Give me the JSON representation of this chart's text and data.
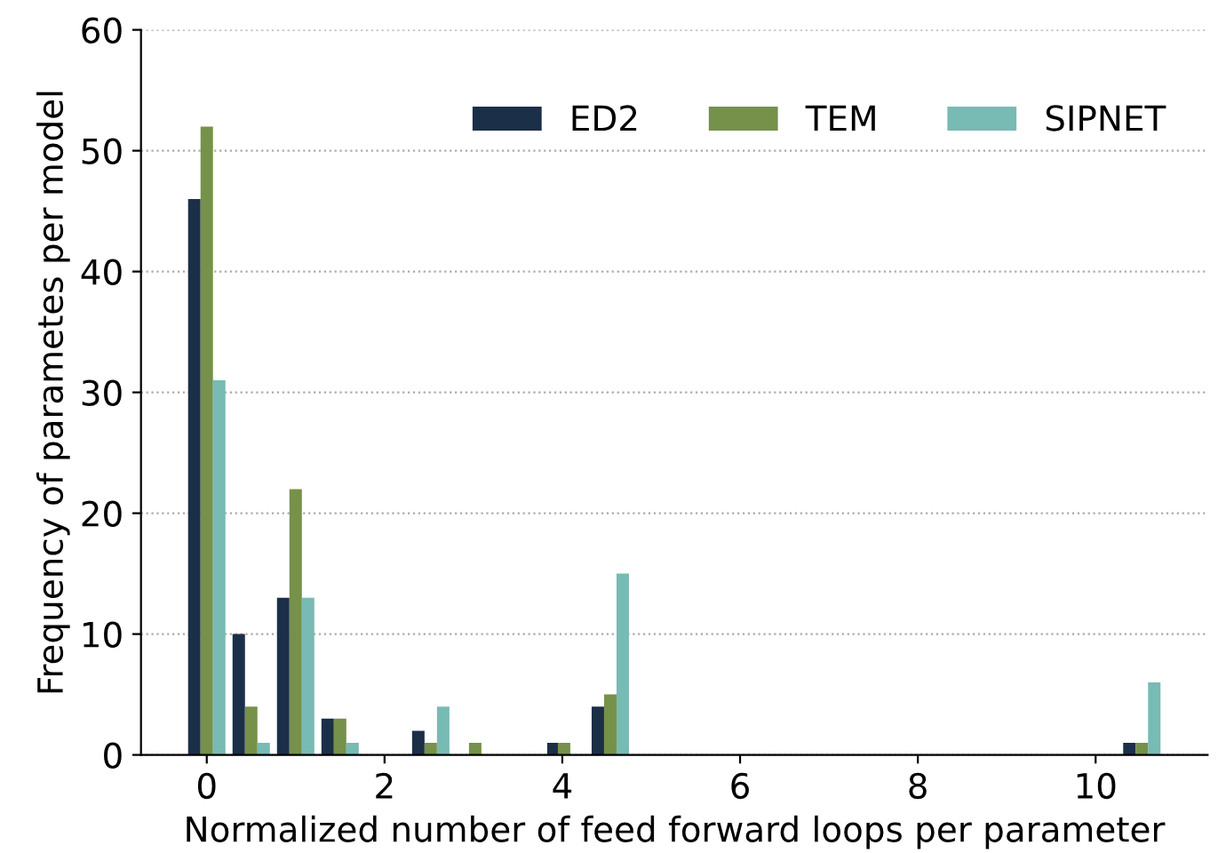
{
  "chart_data": {
    "type": "bar",
    "xlabel": "Normalized number of feed forward loops per parameter",
    "ylabel": "Frequency of parametes per model",
    "series": [
      {
        "name": "ED2",
        "color": "#1c2f48",
        "x": [
          -0.14,
          0.36,
          0.86,
          1.36,
          2.38,
          3.9,
          4.4,
          10.38
        ],
        "values": [
          46,
          10,
          13,
          3,
          2,
          1,
          4,
          1
        ]
      },
      {
        "name": "TEM",
        "color": "#76914a",
        "x": [
          0,
          0.5,
          1,
          1.5,
          2.52,
          3.02,
          4.02,
          4.54,
          10.52
        ],
        "values": [
          52,
          4,
          22,
          3,
          1,
          1,
          1,
          5,
          1
        ]
      },
      {
        "name": "SIPNET",
        "color": "#78bab4",
        "x": [
          0.14,
          0.64,
          1.14,
          1.64,
          2.66,
          4.68,
          10.66
        ],
        "values": [
          31,
          1,
          13,
          1,
          4,
          15,
          6
        ]
      }
    ],
    "xlim": [
      -0.74,
      11.26
    ],
    "xticks": [
      0,
      2,
      4,
      6,
      8,
      10
    ],
    "ylim": [
      0,
      60
    ],
    "yticks": [
      0,
      10,
      20,
      30,
      40,
      50,
      60
    ],
    "grid": "y",
    "legend": "top right"
  }
}
